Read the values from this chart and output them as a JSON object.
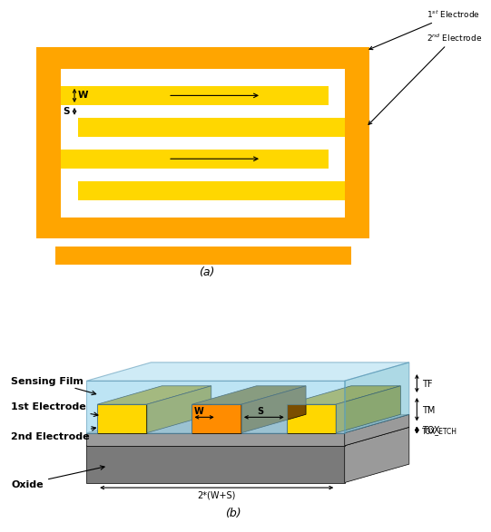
{
  "bg_color": "#ffffff",
  "panel_a": {
    "outer_color": "#FFA500",
    "inner_color": "#FFD700",
    "gap_color": "#ffffff",
    "label_1st": "1$^{st}$ Electrode",
    "label_2nd": "2$^{nd}$ Electrode",
    "label_W": "W",
    "label_S": "S"
  },
  "panel_b": {
    "oxide_dark": "#7A7A7A",
    "oxide_med": "#9A9A9A",
    "oxide_light": "#B5B5B5",
    "oxide_top": "#C8C8C8",
    "elec1_front": "#FFD700",
    "elec1_top": "#C8A000",
    "elec1_right": "#B09000",
    "elec2_front": "#FF8C00",
    "elec2_top": "#8B6000",
    "elec2_right": "#7A4E00",
    "sense_front": "#87CEEB",
    "sense_top": "#A8DCF0",
    "sense_right": "#6BBAD0",
    "sense_alpha": 0.55
  },
  "caption_a": "(a)",
  "caption_b": "(b)"
}
